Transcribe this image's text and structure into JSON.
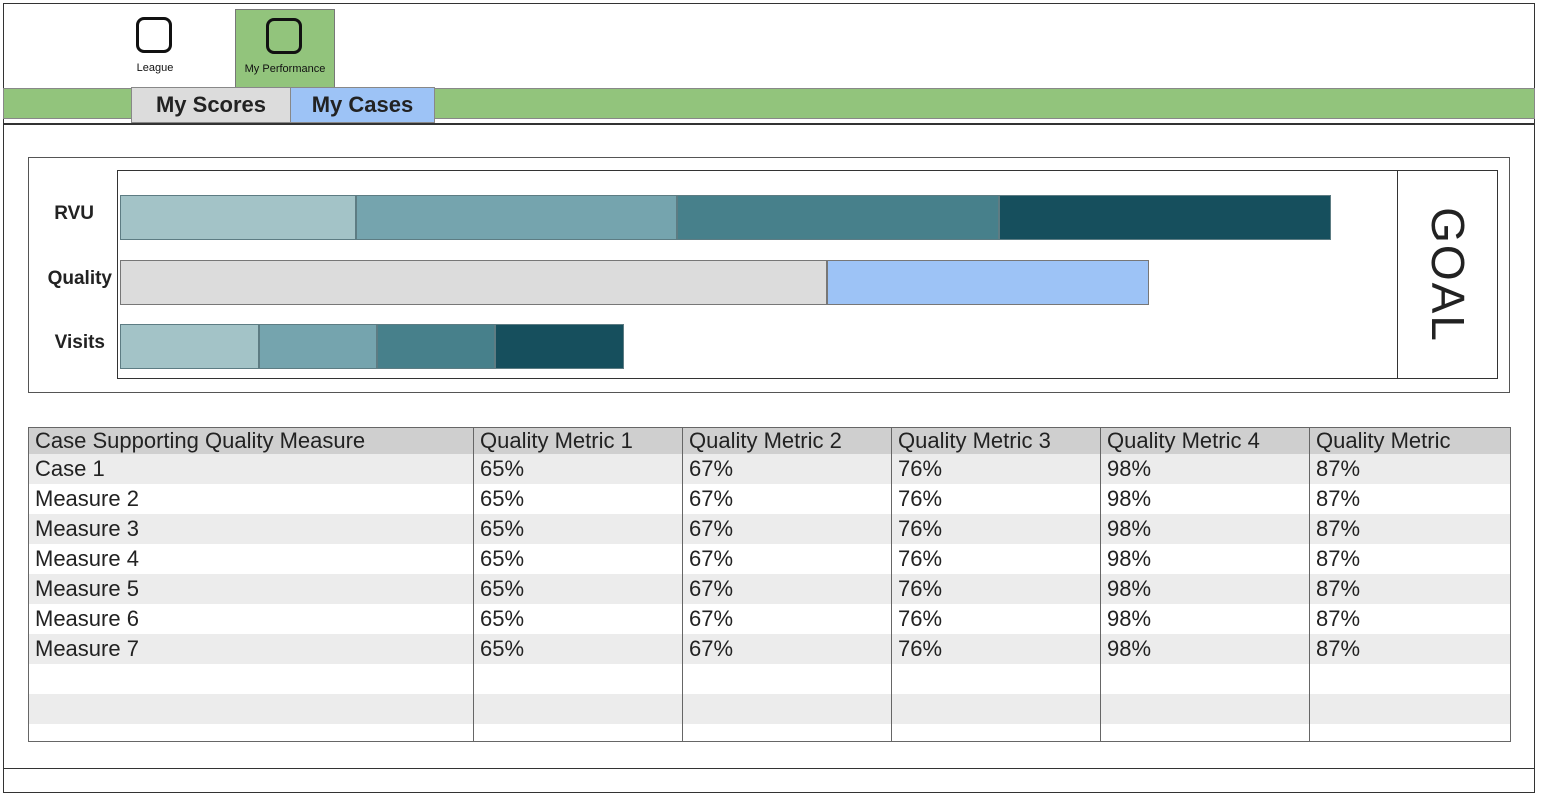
{
  "nav": {
    "items": [
      {
        "label": "League",
        "icon": "square-icon",
        "active": false
      },
      {
        "label": "My Performance",
        "icon": "square-icon",
        "active": true
      }
    ]
  },
  "tabs": [
    {
      "label": "My Scores",
      "active": false
    },
    {
      "label": "My Cases",
      "active": true
    }
  ],
  "colors": {
    "nav_active": "#92c47c",
    "tab_active": "#9dc3f6",
    "tab_inactive": "#dcdcdc",
    "segments": [
      "#a3c3c7",
      "#75a4ae",
      "#47808b",
      "#164f5d"
    ],
    "quality_base": "#dcdcdc",
    "quality_extra": "#9dc3f6"
  },
  "chart_data": {
    "type": "bar",
    "orientation": "horizontal",
    "stacked": true,
    "categories": [
      "RVU",
      "Quality",
      "Visits"
    ],
    "series": [
      {
        "values": [
          22,
          66,
          13
        ]
      },
      {
        "values": [
          30,
          30,
          11
        ]
      },
      {
        "values": [
          30,
          0,
          11
        ]
      },
      {
        "values": [
          31,
          0,
          12
        ]
      }
    ],
    "xlim": [
      0,
      119
    ],
    "goal_label": "GOAL"
  },
  "table": {
    "headers": [
      "Case Supporting Quality Measure",
      "Quality Metric 1",
      "Quality Metric 2",
      "Quality Metric 3",
      "Quality Metric 4",
      "Quality Metric"
    ],
    "rows": [
      [
        "Case 1",
        "65%",
        "67%",
        "76%",
        "98%",
        "87%"
      ],
      [
        "Measure 2",
        "65%",
        "67%",
        "76%",
        "98%",
        "87%"
      ],
      [
        "Measure 3",
        "65%",
        "67%",
        "76%",
        "98%",
        "87%"
      ],
      [
        "Measure 4",
        "65%",
        "67%",
        "76%",
        "98%",
        "87%"
      ],
      [
        "Measure 5",
        "65%",
        "67%",
        "76%",
        "98%",
        "87%"
      ],
      [
        "Measure 6",
        "65%",
        "67%",
        "76%",
        "98%",
        "87%"
      ],
      [
        "Measure 7",
        "65%",
        "67%",
        "76%",
        "98%",
        "87%"
      ]
    ],
    "empty_rows": 3
  }
}
